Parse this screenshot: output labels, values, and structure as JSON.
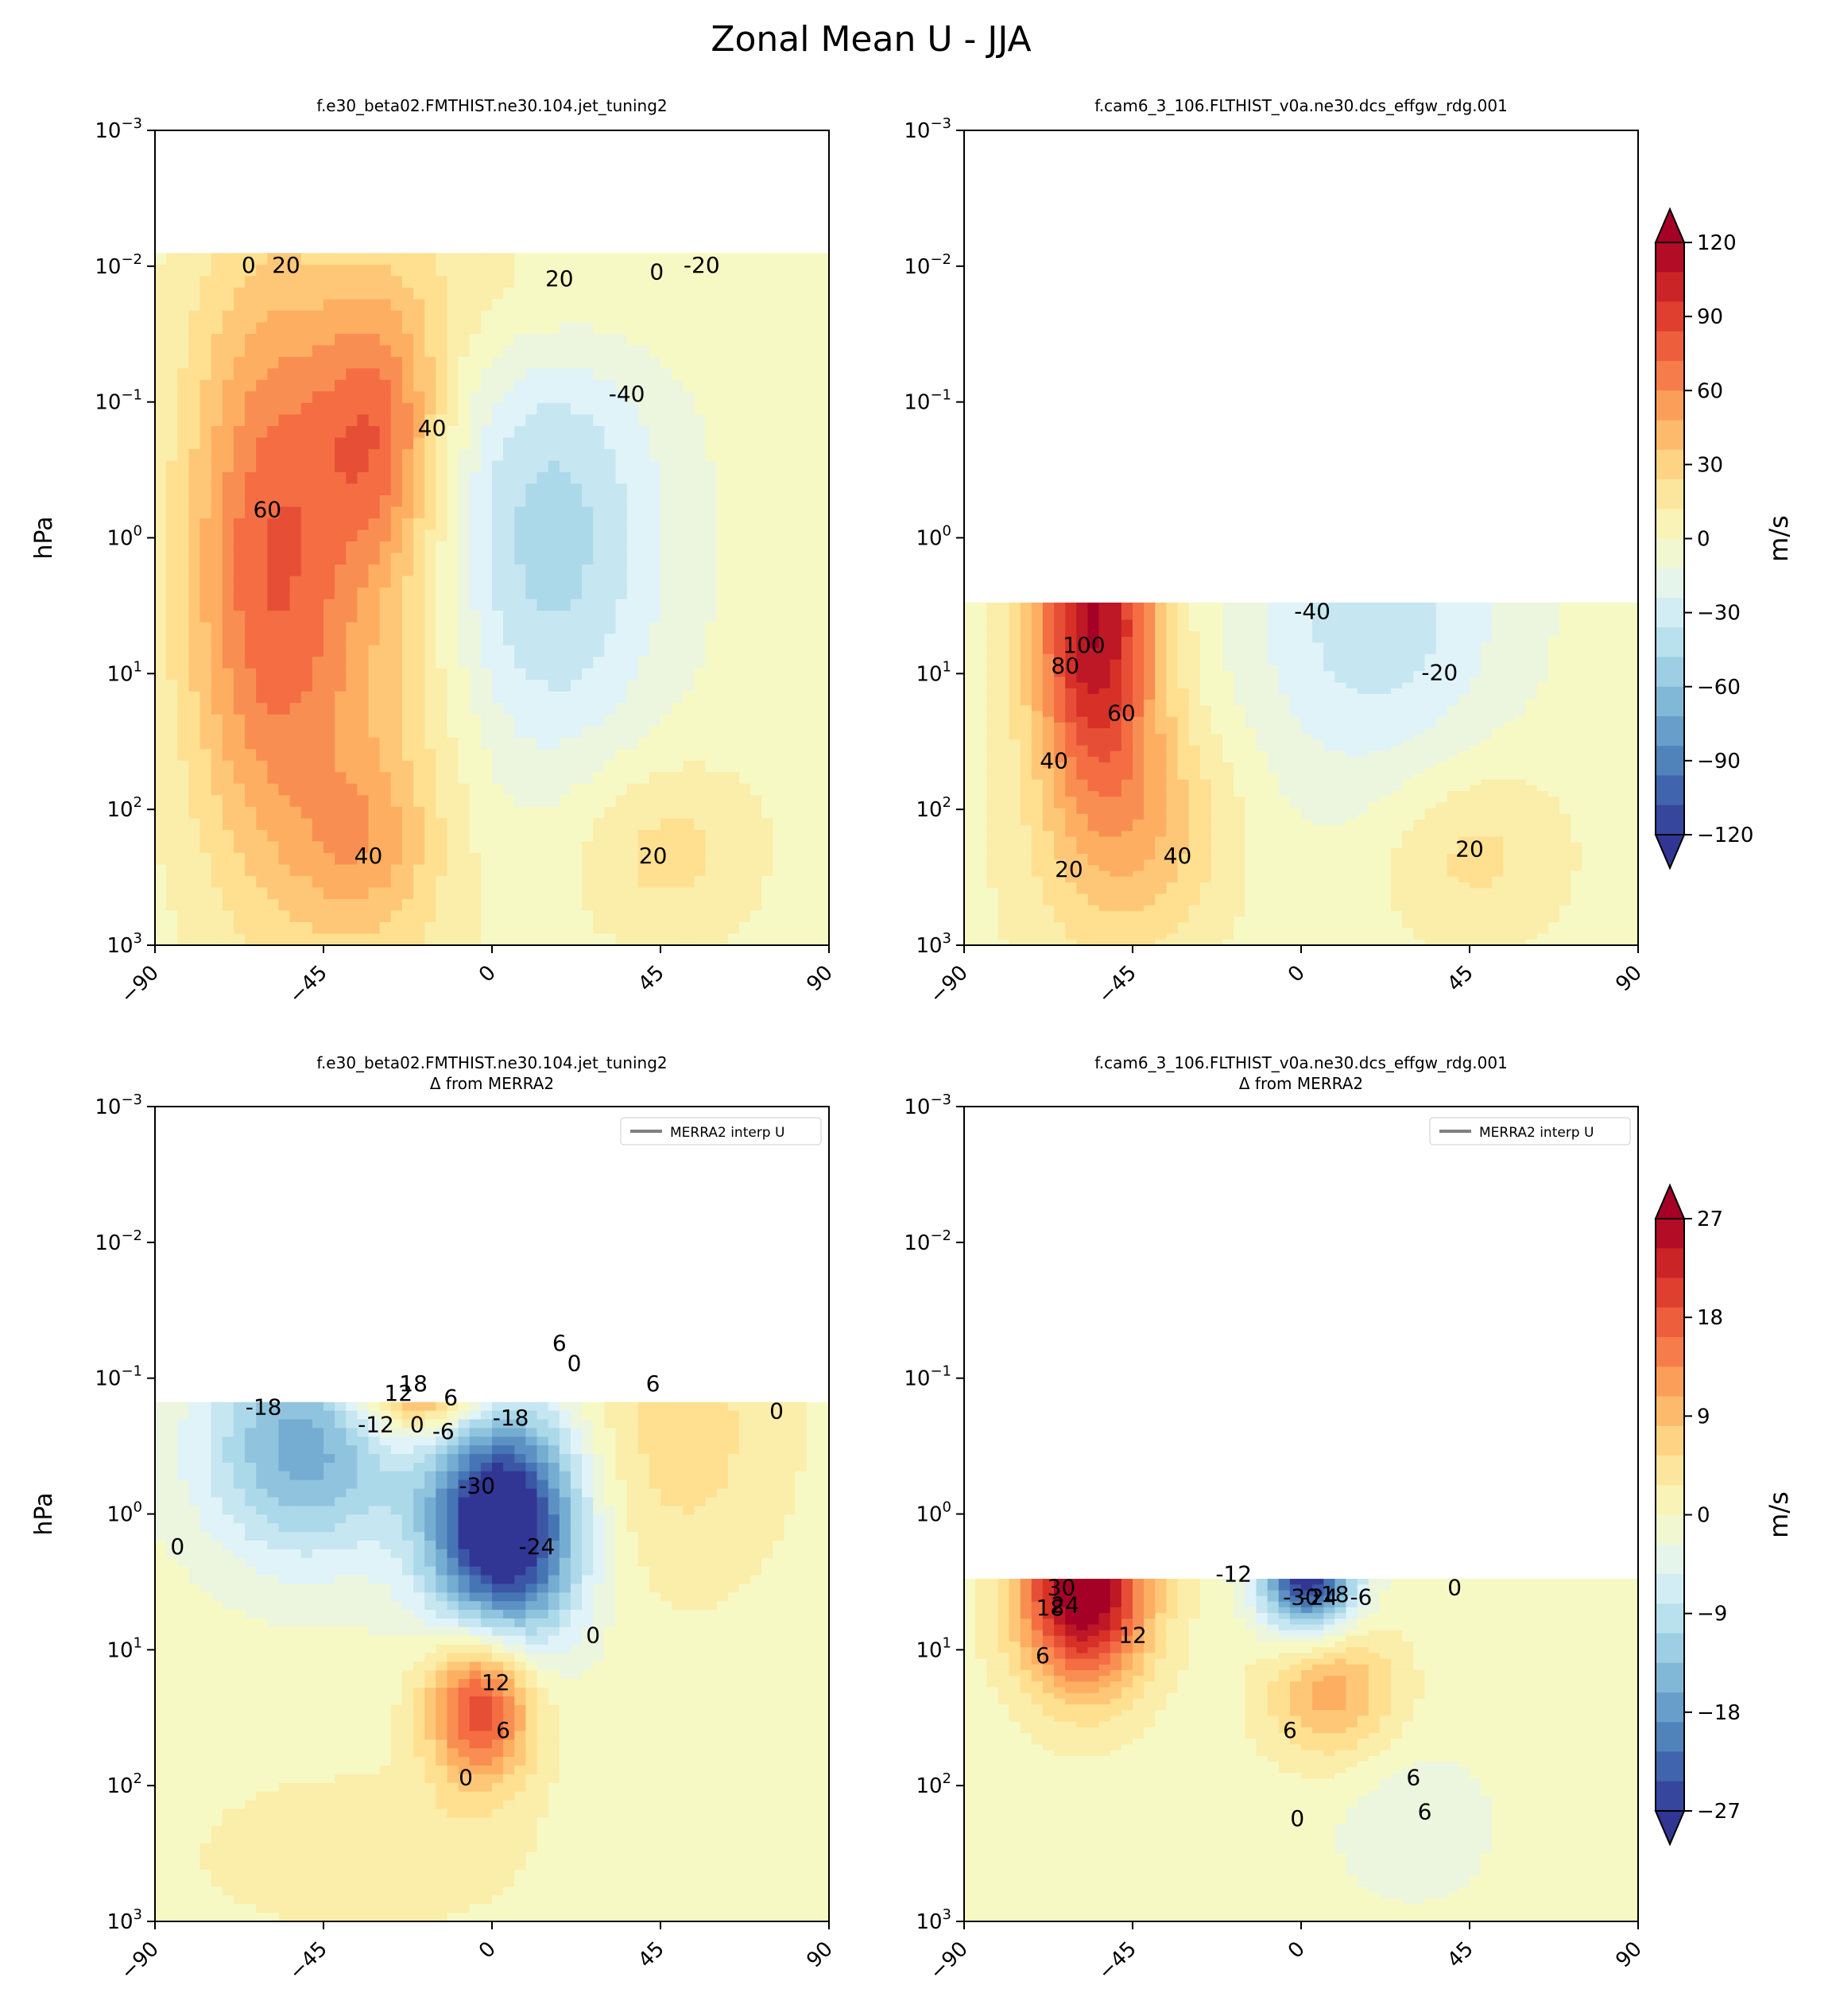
{
  "figure": {
    "suptitle": "Zonal Mean U - JJA",
    "colors": {
      "cmap_low": "#313695",
      "cmap_mid": "#f7f9c4",
      "cmap_high": "#a50026",
      "background": "#ffffff",
      "contour_line": "#000000",
      "obs_line": "#808080"
    }
  },
  "chart_data": [
    {
      "type": "heatmap",
      "panel": "top-left",
      "title": "f.e30_beta02.FMTHIST.ne30.104.jet_tuning2",
      "title2": "",
      "ylabel": "hPa",
      "xlabel": "",
      "x_ticks": [
        "−90",
        "−45",
        "0",
        "45",
        "90"
      ],
      "y_ticks": [
        {
          "b": "10",
          "e": "−3"
        },
        {
          "b": "10",
          "e": "−2"
        },
        {
          "b": "10",
          "e": "−1"
        },
        {
          "b": "10",
          "e": "0"
        },
        {
          "b": "10",
          "e": "1"
        },
        {
          "b": "10",
          "e": "2"
        },
        {
          "b": "10",
          "e": "3"
        }
      ],
      "xlim": [
        -90,
        90
      ],
      "ylim_hPa": [
        1000,
        0.001
      ],
      "y_scale": "log",
      "data_top_hPa": 0.008,
      "vmax": 120,
      "legend": "",
      "jets": [
        {
          "lat": -60,
          "logp": 0.2,
          "sx": 16,
          "sy": 1.6,
          "amp": 72
        },
        {
          "lat": -30,
          "logp": -0.8,
          "sx": 12,
          "sy": 0.7,
          "amp": 55
        },
        {
          "lat": -30,
          "logp": 1.4,
          "sx": 18,
          "sy": 1.8,
          "amp": 30
        },
        {
          "lat": -35,
          "logp": 2.25,
          "sx": 12,
          "sy": 0.4,
          "amp": 22
        },
        {
          "lat": 15,
          "logp": 0.0,
          "sx": 22,
          "sy": 1.2,
          "amp": -48
        },
        {
          "lat": 45,
          "logp": 2.3,
          "sx": 18,
          "sy": 0.5,
          "amp": 24
        },
        {
          "lat": 5,
          "logp": -1.8,
          "sx": 30,
          "sy": 0.5,
          "amp": 18
        }
      ],
      "contour_labels": [
        {
          "lat": -65,
          "logp": -2.0,
          "text": "0"
        },
        {
          "lat": -55,
          "logp": -2.0,
          "text": "20"
        },
        {
          "lat": 18,
          "logp": -1.9,
          "text": "20"
        },
        {
          "lat": 44,
          "logp": -1.95,
          "text": "0"
        },
        {
          "lat": 56,
          "logp": -2.0,
          "text": "-20"
        },
        {
          "lat": 36,
          "logp": -1.05,
          "text": "-40"
        },
        {
          "lat": -16,
          "logp": -0.8,
          "text": "40"
        },
        {
          "lat": -60,
          "logp": -0.2,
          "text": "60"
        },
        {
          "lat": -33,
          "logp": 2.35,
          "text": "40"
        },
        {
          "lat": 43,
          "logp": 2.35,
          "text": "20"
        }
      ],
      "cbar_ticks": [
        "120",
        "90",
        "60",
        "30",
        "0",
        "−30",
        "−60",
        "−90",
        "−120"
      ],
      "cbar_label": "m/s"
    },
    {
      "type": "heatmap",
      "panel": "top-right",
      "title": "f.cam6_3_106.FLTHIST_v0a.ne30.dcs_effgw_rdg.001",
      "title2": "",
      "ylabel": "",
      "xlabel": "",
      "x_ticks": [
        "−90",
        "−45",
        "0",
        "45",
        "90"
      ],
      "y_ticks": [
        {
          "b": "10",
          "e": "−3"
        },
        {
          "b": "10",
          "e": "−2"
        },
        {
          "b": "10",
          "e": "−1"
        },
        {
          "b": "10",
          "e": "0"
        },
        {
          "b": "10",
          "e": "1"
        },
        {
          "b": "10",
          "e": "2"
        },
        {
          "b": "10",
          "e": "3"
        }
      ],
      "xlim": [
        -90,
        90
      ],
      "ylim_hPa": [
        1000,
        0.001
      ],
      "y_scale": "log",
      "data_top_hPa": 3,
      "vmax": 120,
      "legend": "",
      "jets": [
        {
          "lat": -55,
          "logp": 0.6,
          "sx": 12,
          "sy": 0.9,
          "amp": 115
        },
        {
          "lat": -40,
          "logp": 2.1,
          "sx": 16,
          "sy": 0.6,
          "amp": 28
        },
        {
          "lat": -55,
          "logp": 2.6,
          "sx": 20,
          "sy": 0.8,
          "amp": 12
        },
        {
          "lat": 20,
          "logp": 0.5,
          "sx": 25,
          "sy": 1.0,
          "amp": -38
        },
        {
          "lat": 45,
          "logp": 2.3,
          "sx": 18,
          "sy": 0.5,
          "amp": 24
        }
      ],
      "contour_labels": [
        {
          "lat": 3,
          "logp": 0.55,
          "text": "-40"
        },
        {
          "lat": 37,
          "logp": 1.0,
          "text": "-20"
        },
        {
          "lat": -58,
          "logp": 0.8,
          "text": "100"
        },
        {
          "lat": -63,
          "logp": 0.95,
          "text": "80"
        },
        {
          "lat": -48,
          "logp": 1.3,
          "text": "60"
        },
        {
          "lat": -66,
          "logp": 1.65,
          "text": "40"
        },
        {
          "lat": -33,
          "logp": 2.35,
          "text": "40"
        },
        {
          "lat": -62,
          "logp": 2.45,
          "text": "20"
        },
        {
          "lat": 45,
          "logp": 2.3,
          "text": "20"
        }
      ],
      "cbar_ticks": [],
      "cbar_label": ""
    },
    {
      "type": "heatmap",
      "panel": "bottom-left",
      "title": "f.e30_beta02.FMTHIST.ne30.104.jet_tuning2",
      "title2": "Δ from MERRA2",
      "ylabel": "hPa",
      "xlabel": "",
      "x_ticks": [
        "−90",
        "−45",
        "0",
        "45",
        "90"
      ],
      "y_ticks": [
        {
          "b": "10",
          "e": "−3"
        },
        {
          "b": "10",
          "e": "−2"
        },
        {
          "b": "10",
          "e": "−1"
        },
        {
          "b": "10",
          "e": "0"
        },
        {
          "b": "10",
          "e": "1"
        },
        {
          "b": "10",
          "e": "2"
        },
        {
          "b": "10",
          "e": "3"
        }
      ],
      "xlim": [
        -90,
        90
      ],
      "ylim_hPa": [
        1000,
        0.001
      ],
      "y_scale": "log",
      "data_top_hPa": 0.15,
      "vmax": 30,
      "legend": "MERRA2 interp U",
      "jets": [
        {
          "lat": 3,
          "logp": 0.1,
          "sx": 14,
          "sy": 0.6,
          "amp": -38
        },
        {
          "lat": -50,
          "logp": -0.5,
          "sx": 20,
          "sy": 0.6,
          "amp": -18
        },
        {
          "lat": -20,
          "logp": -1.0,
          "sx": 12,
          "sy": 0.3,
          "amp": 22
        },
        {
          "lat": -3,
          "logp": 1.4,
          "sx": 10,
          "sy": 0.4,
          "amp": 24
        },
        {
          "lat": 50,
          "logp": -0.6,
          "sx": 20,
          "sy": 0.8,
          "amp": 6
        },
        {
          "lat": -35,
          "logp": 2.5,
          "sx": 30,
          "sy": 0.4,
          "amp": 4
        }
      ],
      "contour_labels": [
        {
          "lat": -21,
          "logp": -0.95,
          "text": "18"
        },
        {
          "lat": -25,
          "logp": -0.88,
          "text": "12"
        },
        {
          "lat": -11,
          "logp": -0.85,
          "text": "6"
        },
        {
          "lat": 18,
          "logp": -1.25,
          "text": "6"
        },
        {
          "lat": 22,
          "logp": -1.1,
          "text": "0"
        },
        {
          "lat": 43,
          "logp": -0.95,
          "text": "6"
        },
        {
          "lat": 76,
          "logp": -0.75,
          "text": "0"
        },
        {
          "lat": -61,
          "logp": -0.78,
          "text": "-18"
        },
        {
          "lat": -31,
          "logp": -0.65,
          "text": "-12"
        },
        {
          "lat": -20,
          "logp": -0.65,
          "text": "0"
        },
        {
          "lat": -13,
          "logp": -0.6,
          "text": "-6"
        },
        {
          "lat": 5,
          "logp": -0.7,
          "text": "-18"
        },
        {
          "lat": -4,
          "logp": -0.2,
          "text": "-30"
        },
        {
          "lat": 12,
          "logp": 0.25,
          "text": "-24"
        },
        {
          "lat": -84,
          "logp": 0.25,
          "text": "0"
        },
        {
          "lat": 27,
          "logp": 0.9,
          "text": "0"
        },
        {
          "lat": 1,
          "logp": 1.25,
          "text": "12"
        },
        {
          "lat": 3,
          "logp": 1.6,
          "text": "6"
        },
        {
          "lat": -7,
          "logp": 1.95,
          "text": "0"
        }
      ],
      "cbar_ticks": [
        "27",
        "18",
        "9",
        "0",
        "−9",
        "−18",
        "−27"
      ],
      "cbar_label": "m/s"
    },
    {
      "type": "heatmap",
      "panel": "bottom-right",
      "title": "f.cam6_3_106.FLTHIST_v0a.ne30.dcs_effgw_rdg.001",
      "title2": "Δ from MERRA2",
      "ylabel": "",
      "xlabel": "",
      "x_ticks": [
        "−90",
        "−45",
        "0",
        "45",
        "90"
      ],
      "y_ticks": [
        {
          "b": "10",
          "e": "−3"
        },
        {
          "b": "10",
          "e": "−2"
        },
        {
          "b": "10",
          "e": "−1"
        },
        {
          "b": "10",
          "e": "0"
        },
        {
          "b": "10",
          "e": "1"
        },
        {
          "b": "10",
          "e": "2"
        },
        {
          "b": "10",
          "e": "3"
        }
      ],
      "xlim": [
        -90,
        90
      ],
      "ylim_hPa": [
        1000,
        0.001
      ],
      "y_scale": "log",
      "data_top_hPa": 3,
      "vmax": 30,
      "legend": "MERRA2 interp U",
      "jets": [
        {
          "lat": -58,
          "logp": 0.55,
          "sx": 12,
          "sy": 0.5,
          "amp": 34
        },
        {
          "lat": 2,
          "logp": 0.45,
          "sx": 9,
          "sy": 0.3,
          "amp": -32
        },
        {
          "lat": 8,
          "logp": 1.3,
          "sx": 12,
          "sy": 0.35,
          "amp": 12
        },
        {
          "lat": 30,
          "logp": 2.3,
          "sx": 15,
          "sy": 0.4,
          "amp": -4
        }
      ],
      "contour_labels": [
        {
          "lat": -64,
          "logp": 0.55,
          "text": "30"
        },
        {
          "lat": -67,
          "logp": 0.7,
          "text": "18"
        },
        {
          "lat": -63,
          "logp": 0.68,
          "text": "24"
        },
        {
          "lat": -45,
          "logp": 0.9,
          "text": "12"
        },
        {
          "lat": -69,
          "logp": 1.05,
          "text": "6"
        },
        {
          "lat": -18,
          "logp": 0.45,
          "text": "-12"
        },
        {
          "lat": 0,
          "logp": 0.62,
          "text": "-30"
        },
        {
          "lat": 5,
          "logp": 0.62,
          "text": "-24"
        },
        {
          "lat": 8,
          "logp": 0.6,
          "text": "-18"
        },
        {
          "lat": 16,
          "logp": 0.62,
          "text": "-6"
        },
        {
          "lat": 41,
          "logp": 0.55,
          "text": "0"
        },
        {
          "lat": -3,
          "logp": 1.6,
          "text": "6"
        },
        {
          "lat": -1,
          "logp": 2.25,
          "text": "0"
        },
        {
          "lat": 30,
          "logp": 1.95,
          "text": "6"
        },
        {
          "lat": 33,
          "logp": 2.2,
          "text": "6"
        }
      ],
      "cbar_ticks": [],
      "cbar_label": ""
    }
  ]
}
